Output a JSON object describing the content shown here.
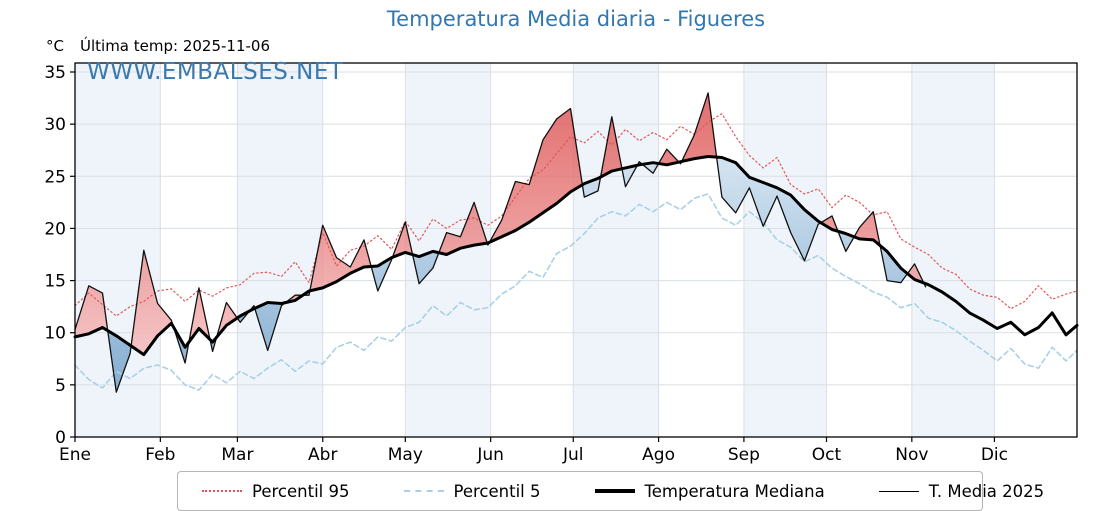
{
  "title": "Temperatura Media diaria - Figueres",
  "header": {
    "units": "°C",
    "last_temp": "Última temp: 2025-11-06"
  },
  "watermark": "WWW.EMBALSES.NET",
  "colors": {
    "title": "#3377b0",
    "watermark": "#3a79ae",
    "p95_line": "#e25757",
    "p5_line": "#a9d0e5",
    "median_line": "#000000",
    "t2025_line": "#111111",
    "month_band": "#eff4fa",
    "grid": "#dadfe4",
    "fill_above_top": "#dd5454",
    "fill_above_bottom": "#f6bebe",
    "fill_below_top": "#cbdeee",
    "fill_below_bottom": "#6f9fc8"
  },
  "legend": {
    "items": [
      {
        "label": "Percentil 95",
        "style": "dotted",
        "color": "#e25757"
      },
      {
        "label": "Percentil 5",
        "style": "dashed",
        "color": "#a9d0e5"
      },
      {
        "label": "Temperatura Mediana",
        "style": "solid-thick",
        "color": "#000000"
      },
      {
        "label": "T. Media 2025",
        "style": "solid-thin",
        "color": "#000000"
      }
    ]
  },
  "chart_data": {
    "type": "line",
    "title": "Temperatura Media diaria - Figueres",
    "ylabel": "°C",
    "ylim": [
      0,
      35.9
    ],
    "yticks": [
      0,
      5,
      10,
      15,
      20,
      25,
      30,
      35
    ],
    "xlabel_months": [
      "Ene",
      "Feb",
      "Mar",
      "Abr",
      "May",
      "Jun",
      "Jul",
      "Ago",
      "Sep",
      "Oct",
      "Nov",
      "Dic"
    ],
    "month_start_days": [
      1,
      32,
      60,
      91,
      121,
      152,
      182,
      213,
      244,
      274,
      305,
      335
    ],
    "shaded_months": "alternate months shaded pale blue (Ene, Mar, May, Jul, Sep, Nov)",
    "anomaly_fill": {
      "above": "red fill where T. Media 2025 > Temperatura Mediana",
      "below": "blue fill where T. Media 2025 < Temperatura Mediana"
    },
    "last_data_date": "2025-11-06",
    "days": [
      1,
      6,
      11,
      16,
      21,
      26,
      31,
      36,
      41,
      46,
      51,
      56,
      61,
      66,
      71,
      76,
      81,
      86,
      91,
      96,
      101,
      106,
      111,
      116,
      121,
      126,
      131,
      136,
      141,
      146,
      151,
      156,
      161,
      166,
      171,
      176,
      181,
      186,
      191,
      196,
      201,
      206,
      211,
      216,
      221,
      226,
      231,
      236,
      241,
      246,
      251,
      256,
      261,
      266,
      271,
      276,
      281,
      286,
      291,
      296,
      301,
      306,
      311,
      316,
      321,
      326,
      331,
      336,
      341,
      346,
      351,
      356,
      361,
      365
    ],
    "series": [
      {
        "name": "Percentil 95",
        "values": [
          12.6,
          13.8,
          12.7,
          11.6,
          12.5,
          13.0,
          14.0,
          14.2,
          13.0,
          14.1,
          13.5,
          14.3,
          14.6,
          15.7,
          15.8,
          15.4,
          16.8,
          14.8,
          19.6,
          16.4,
          17.9,
          18.3,
          19.3,
          18.0,
          20.7,
          18.8,
          20.9,
          20.0,
          20.8,
          21.0,
          20.3,
          21.2,
          23.0,
          24.8,
          25.6,
          27.2,
          28.8,
          28.2,
          29.3,
          28.0,
          29.5,
          28.4,
          29.2,
          28.5,
          29.8,
          29.0,
          30.2,
          31.0,
          28.8,
          27.0,
          25.8,
          26.8,
          24.2,
          23.3,
          23.8,
          22.0,
          23.2,
          22.5,
          21.3,
          21.6,
          19.0,
          18.2,
          17.5,
          16.2,
          15.6,
          14.2,
          13.6,
          13.4,
          12.3,
          13.0,
          14.5,
          13.2,
          13.7,
          14.0
        ]
      },
      {
        "name": "Percentil 5",
        "values": [
          6.9,
          5.5,
          4.7,
          6.3,
          5.6,
          6.6,
          6.9,
          6.4,
          5.0,
          4.5,
          6.0,
          5.2,
          6.3,
          5.6,
          6.6,
          7.4,
          6.3,
          7.3,
          7.0,
          8.6,
          9.1,
          8.3,
          9.6,
          9.2,
          10.5,
          11.0,
          12.6,
          11.6,
          12.9,
          12.2,
          12.4,
          13.7,
          14.5,
          15.9,
          15.3,
          17.6,
          18.3,
          19.5,
          21.0,
          21.6,
          21.2,
          22.3,
          21.6,
          22.5,
          21.8,
          22.9,
          23.3,
          21.0,
          20.3,
          21.6,
          20.6,
          18.9,
          18.2,
          16.8,
          17.4,
          16.2,
          15.4,
          14.7,
          13.9,
          13.4,
          12.4,
          12.8,
          11.4,
          11.0,
          10.2,
          9.2,
          8.3,
          7.3,
          8.5,
          7.0,
          6.6,
          8.6,
          7.3,
          8.3
        ]
      },
      {
        "name": "Temperatura Mediana",
        "values": [
          9.6,
          9.9,
          10.5,
          9.7,
          8.8,
          7.9,
          9.7,
          10.9,
          8.6,
          10.4,
          9.1,
          10.7,
          11.6,
          12.3,
          12.9,
          12.8,
          13.1,
          14.0,
          14.3,
          14.9,
          15.7,
          16.3,
          16.4,
          17.2,
          17.7,
          17.3,
          17.8,
          17.5,
          18.1,
          18.4,
          18.6,
          19.2,
          19.8,
          20.6,
          21.5,
          22.4,
          23.5,
          24.3,
          24.8,
          25.5,
          25.8,
          26.1,
          26.3,
          26.1,
          26.4,
          26.7,
          26.9,
          26.8,
          26.3,
          24.9,
          24.4,
          23.9,
          23.2,
          21.8,
          20.7,
          19.9,
          19.5,
          19.0,
          18.9,
          17.8,
          16.2,
          15.1,
          14.6,
          13.9,
          13.0,
          11.9,
          11.2,
          10.4,
          11.0,
          9.8,
          10.5,
          11.9,
          9.8,
          10.7
        ]
      },
      {
        "name": "T. Media 2025",
        "days": [
          1,
          6,
          11,
          16,
          21,
          26,
          31,
          36,
          41,
          46,
          51,
          56,
          61,
          66,
          71,
          76,
          81,
          86,
          91,
          96,
          101,
          106,
          111,
          116,
          121,
          126,
          131,
          136,
          141,
          146,
          151,
          156,
          161,
          166,
          171,
          176,
          181,
          186,
          191,
          196,
          201,
          206,
          211,
          216,
          221,
          226,
          231,
          236,
          241,
          246,
          251,
          256,
          261,
          266,
          271,
          276,
          281,
          286,
          291,
          296,
          301,
          306,
          310
        ],
        "values": [
          10.3,
          14.5,
          13.8,
          4.3,
          8.0,
          17.9,
          12.8,
          11.2,
          7.1,
          14.3,
          8.2,
          12.9,
          11.0,
          12.6,
          8.3,
          12.6,
          13.6,
          13.6,
          20.3,
          17.2,
          16.3,
          18.9,
          14.0,
          17.0,
          20.6,
          14.7,
          16.2,
          19.6,
          19.2,
          22.5,
          18.4,
          20.8,
          24.5,
          24.2,
          28.5,
          30.5,
          31.5,
          23.0,
          23.6,
          30.7,
          24.0,
          26.4,
          25.3,
          27.6,
          26.2,
          29.0,
          33.0,
          23.0,
          21.5,
          23.9,
          20.2,
          23.1,
          19.6,
          16.9,
          20.4,
          21.2,
          17.8,
          20.1,
          21.6,
          15.0,
          14.8,
          16.6,
          14.4
        ]
      }
    ]
  }
}
